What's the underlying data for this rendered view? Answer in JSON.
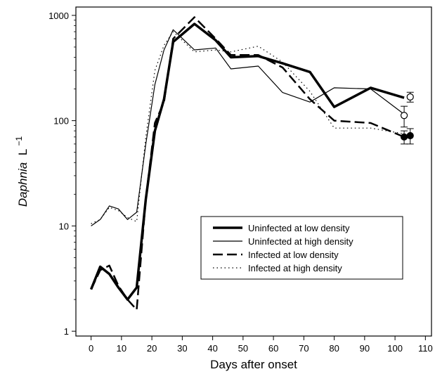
{
  "chart_data": {
    "type": "line",
    "xlabel": "Days after onset",
    "ylabel_main": "Daphnia",
    "ylabel_unit": "L",
    "ylabel_exp": "−1",
    "xlim": [
      -5,
      112
    ],
    "ylim": [
      0.9,
      1200
    ],
    "yscale": "log",
    "xticks": [
      0,
      10,
      20,
      30,
      40,
      50,
      60,
      70,
      80,
      90,
      100,
      110
    ],
    "yticks": [
      1,
      10,
      100,
      1000
    ],
    "ytick_labels": [
      "1",
      "10",
      "100",
      "1000"
    ],
    "legend_position": "lower-right",
    "grid": false,
    "series": [
      {
        "name": "Uninfected at low density",
        "style": "thick-solid",
        "x": [
          0,
          3,
          6,
          9,
          12,
          15,
          18,
          21,
          24,
          27,
          34,
          41,
          46,
          55,
          63,
          72,
          80,
          92,
          103
        ],
        "y": [
          2.5,
          4.1,
          3.5,
          2.6,
          2.0,
          2.6,
          18,
          80,
          160,
          560,
          830,
          580,
          400,
          410,
          350,
          290,
          135,
          205,
          165
        ],
        "end_marker": {
          "x": 105,
          "y": 168,
          "err": 18,
          "fill": "open"
        }
      },
      {
        "name": "Uninfected at high density",
        "style": "thin-solid",
        "x": [
          0,
          3,
          6,
          9,
          12,
          15,
          18,
          21,
          24,
          27,
          34,
          41,
          46,
          55,
          63,
          72,
          80,
          92,
          103
        ],
        "y": [
          10,
          11.5,
          15.5,
          14.5,
          11.5,
          13.5,
          60,
          220,
          470,
          730,
          470,
          490,
          310,
          330,
          185,
          150,
          205,
          200,
          115
        ],
        "end_marker": {
          "x": 103,
          "y": 112,
          "err": 25,
          "fill": "open"
        }
      },
      {
        "name": "Infected at low density",
        "style": "dashed",
        "x": [
          0,
          3,
          6,
          9,
          12,
          15,
          18,
          21,
          24,
          27,
          34,
          41,
          46,
          55,
          63,
          72,
          80,
          92,
          103
        ],
        "y": [
          2.5,
          3.8,
          4.2,
          2.7,
          2.0,
          1.6,
          18,
          95,
          150,
          600,
          960,
          600,
          420,
          420,
          320,
          160,
          100,
          95,
          70
        ],
        "end_marker": {
          "x": 103,
          "y": 70,
          "err": 10,
          "fill": "filled"
        }
      },
      {
        "name": "Infected at high density",
        "style": "dotted",
        "x": [
          0,
          3,
          6,
          9,
          12,
          15,
          18,
          21,
          24,
          27,
          34,
          41,
          46,
          55,
          63,
          72,
          80,
          92,
          103
        ],
        "y": [
          10.5,
          11.5,
          15,
          14,
          12,
          11,
          70,
          300,
          520,
          700,
          450,
          470,
          450,
          510,
          360,
          190,
          85,
          85,
          75
        ],
        "end_marker": {
          "x": 105,
          "y": 72,
          "err": 12,
          "fill": "filled"
        }
      }
    ]
  }
}
